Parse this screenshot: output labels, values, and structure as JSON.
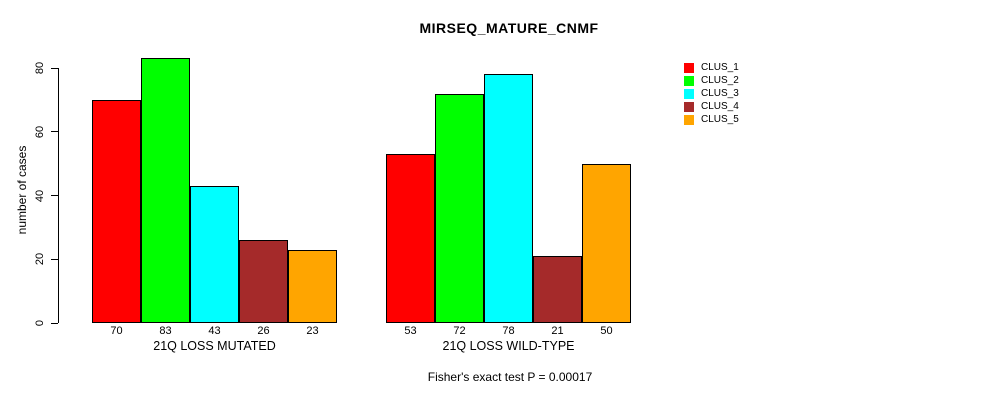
{
  "title": "MIRSEQ_MATURE_CNMF",
  "caption": "Fisher's exact test P = 0.00017",
  "y_axis": {
    "label": "number of cases",
    "ticks": [
      0,
      20,
      40,
      60,
      80
    ],
    "max": 80
  },
  "legend": {
    "items": [
      {
        "label": "CLUS_1",
        "color": "#FF0000"
      },
      {
        "label": "CLUS_2",
        "color": "#00FF00"
      },
      {
        "label": "CLUS_3",
        "color": "#00FFFF"
      },
      {
        "label": "CLUS_4",
        "color": "#A52A2A"
      },
      {
        "label": "CLUS_5",
        "color": "#FFA500"
      }
    ]
  },
  "chart_data": {
    "type": "bar",
    "title": "MIRSEQ_MATURE_CNMF",
    "xlabel": "",
    "ylabel": "number of cases",
    "ylim": [
      0,
      80
    ],
    "yticks": [
      0,
      20,
      40,
      60,
      80
    ],
    "grid": false,
    "legend_position": "right",
    "bar_value_labels": true,
    "groups": [
      "21Q LOSS MUTATED",
      "21Q LOSS WILD-TYPE"
    ],
    "series": [
      {
        "name": "CLUS_1",
        "color": "#FF0000",
        "values": [
          70,
          53
        ]
      },
      {
        "name": "CLUS_2",
        "color": "#00FF00",
        "values": [
          83,
          72
        ]
      },
      {
        "name": "CLUS_3",
        "color": "#00FFFF",
        "values": [
          43,
          78
        ]
      },
      {
        "name": "CLUS_4",
        "color": "#A52A2A",
        "values": [
          26,
          21
        ]
      },
      {
        "name": "CLUS_5",
        "color": "#FFA500",
        "values": [
          23,
          50
        ]
      }
    ],
    "annotation": "Fisher's exact test P = 0.00017"
  }
}
